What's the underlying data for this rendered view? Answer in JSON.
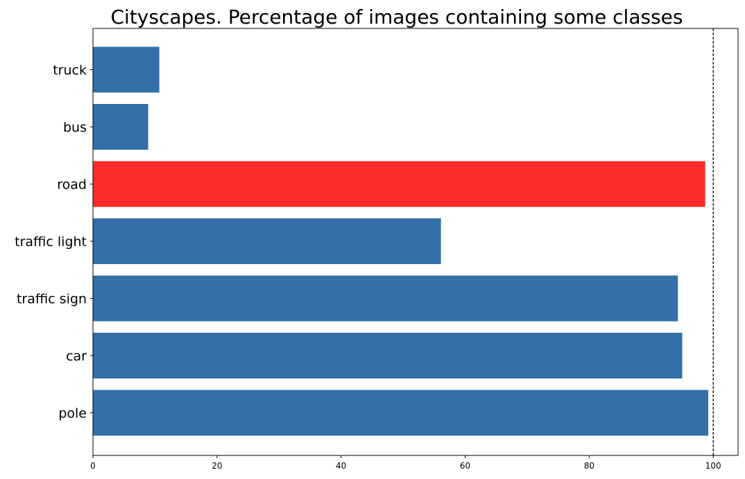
{
  "chart_data": {
    "type": "bar",
    "orientation": "horizontal",
    "title": "Cityscapes. Percentage of images containing some classes",
    "xlabel": "",
    "ylabel": "",
    "categories": [
      "pole",
      "car",
      "traffic sign",
      "traffic light",
      "road",
      "bus",
      "truck"
    ],
    "values": [
      99.2,
      95.0,
      94.3,
      56.1,
      98.7,
      8.9,
      10.7
    ],
    "bar_colors": [
      "#336fa8",
      "#336fa8",
      "#336fa8",
      "#336fa8",
      "#ff2a2a",
      "#336fa8",
      "#336fa8"
    ],
    "xlim": [
      0,
      104
    ],
    "xticks": [
      "0",
      "20",
      "40",
      "60",
      "80",
      "100"
    ],
    "xtick_values": [
      0,
      20,
      40,
      60,
      80,
      100
    ],
    "reference_line": {
      "x": 100,
      "style": "dashed",
      "color": "#000000"
    },
    "grid": false,
    "legend": "none"
  }
}
